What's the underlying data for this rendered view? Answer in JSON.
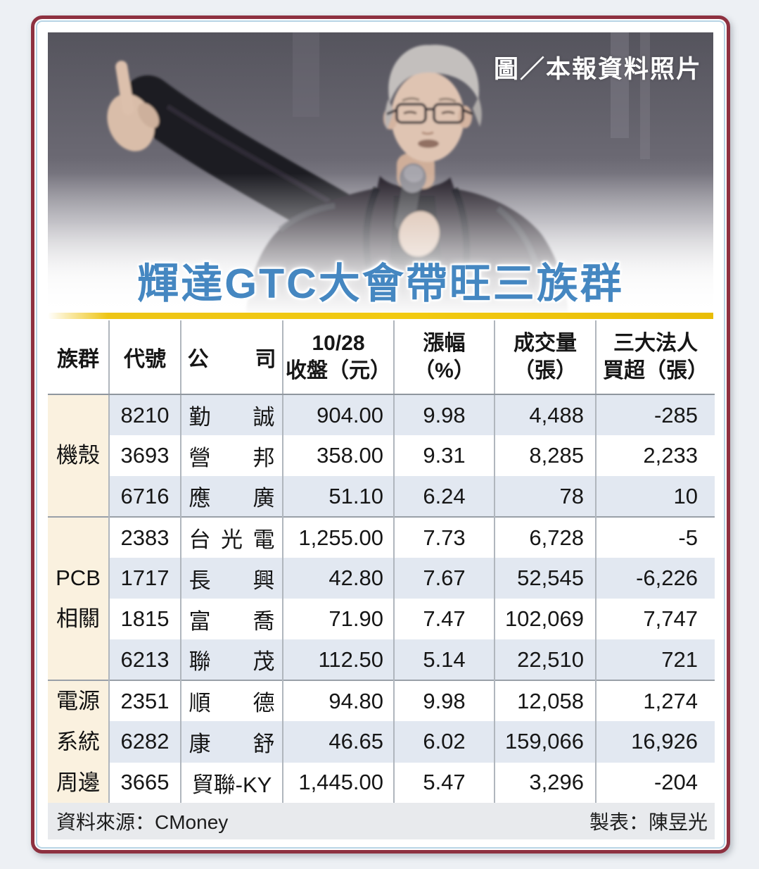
{
  "page": {
    "photo_caption": "圖／本報資料照片",
    "title": "輝達GTC大會帶旺三族群"
  },
  "table": {
    "headers": {
      "group": "族群",
      "code": "代號",
      "company": "公司",
      "close": [
        "10/28",
        "收盤（元）"
      ],
      "change": [
        "漲幅",
        "（%）"
      ],
      "volume": [
        "成交量",
        "（張）"
      ],
      "net_buy": [
        "三大法人",
        "買超（張）"
      ]
    },
    "groups": [
      {
        "name": "機殼",
        "name_lines": [
          "機殼"
        ],
        "rows": [
          {
            "code": "8210",
            "company": "勤誠",
            "close": "904.00",
            "change": "9.98",
            "volume": "4,488",
            "net_buy": "-285"
          },
          {
            "code": "3693",
            "company": "營邦",
            "close": "358.00",
            "change": "9.31",
            "volume": "8,285",
            "net_buy": "2,233"
          },
          {
            "code": "6716",
            "company": "應廣",
            "close": "51.10",
            "change": "6.24",
            "volume": "78",
            "net_buy": "10"
          }
        ]
      },
      {
        "name": "PCB相關",
        "name_lines": [
          "PCB",
          "相關"
        ],
        "rows": [
          {
            "code": "2383",
            "company": "台光電",
            "close": "1,255.00",
            "change": "7.73",
            "volume": "6,728",
            "net_buy": "-5"
          },
          {
            "code": "1717",
            "company": "長興",
            "close": "42.80",
            "change": "7.67",
            "volume": "52,545",
            "net_buy": "-6,226"
          },
          {
            "code": "1815",
            "company": "富喬",
            "close": "71.90",
            "change": "7.47",
            "volume": "102,069",
            "net_buy": "7,747"
          },
          {
            "code": "6213",
            "company": "聯茂",
            "close": "112.50",
            "change": "5.14",
            "volume": "22,510",
            "net_buy": "721"
          }
        ]
      },
      {
        "name": "電源系統周邊",
        "name_lines": [
          "電源",
          "系統",
          "周邊"
        ],
        "rows": [
          {
            "code": "2351",
            "company": "順德",
            "close": "94.80",
            "change": "9.98",
            "volume": "12,058",
            "net_buy": "1,274"
          },
          {
            "code": "6282",
            "company": "康舒",
            "close": "46.65",
            "change": "6.02",
            "volume": "159,066",
            "net_buy": "16,926"
          },
          {
            "code": "3665",
            "company": "貿聯-KY",
            "close": "1,445.00",
            "change": "5.47",
            "volume": "3,296",
            "net_buy": "-204"
          }
        ]
      }
    ]
  },
  "footer": {
    "source": "資料來源：CMoney",
    "credit": "製表：陳昱光"
  },
  "colors": {
    "frame_red": "#8e3140",
    "frame_blue": "#b7d4e5",
    "title_blue": "#4587c1",
    "rule_gold": "#f0c41c",
    "row_blue": "#e2e8f1",
    "group_cream": "#faf1df",
    "footer_grey": "#e8eaed"
  }
}
